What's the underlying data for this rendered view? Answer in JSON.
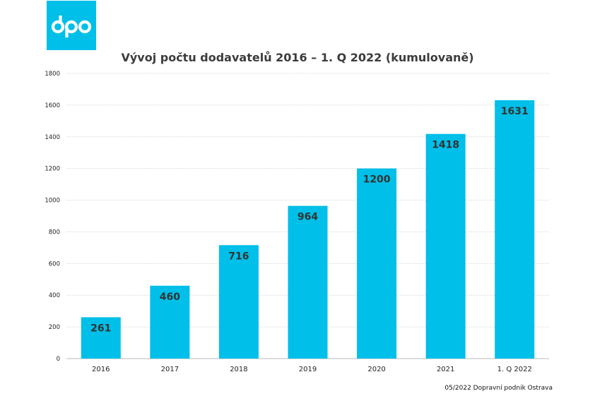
{
  "logo": {
    "text": "dpo",
    "color": "#00bfe8"
  },
  "chart_data": {
    "type": "bar",
    "title": "Vývoj počtu dodavatelů 2016 – 1. Q 2022 (kumulovaně)",
    "xlabel": "",
    "ylabel": "",
    "categories": [
      "2016",
      "2017",
      "2018",
      "2019",
      "2020",
      "2021",
      "1. Q 2022"
    ],
    "values": [
      261,
      460,
      716,
      964,
      1200,
      1418,
      1631
    ],
    "data_labels": [
      "261",
      "460",
      "716",
      "964",
      "1200",
      "1418",
      "1631"
    ],
    "ylim": [
      0,
      1800
    ],
    "yticks": [
      "0",
      "200",
      "400",
      "600",
      "800",
      "1000",
      "1200",
      "1400",
      "1600",
      "1800"
    ],
    "grid": true,
    "bar_color": "#00bfe8",
    "label_color": "#333333"
  },
  "footer": {
    "source": "05/2022 Dopravní podnik Ostrava"
  }
}
